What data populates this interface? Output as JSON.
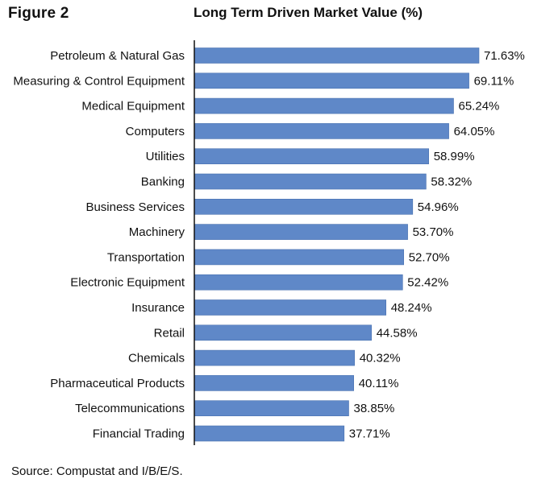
{
  "header": {
    "figure_label": "Figure 2",
    "title": "Long Term Driven Market Value (%)"
  },
  "footer": {
    "source": "Source: Compustat and I/B/E/S."
  },
  "colors": {
    "bar": "#5f88c8",
    "bar_edge": "#4a72b0",
    "axis": "#111111"
  },
  "chart_data": {
    "type": "bar",
    "orientation": "horizontal",
    "title": "Long Term Driven Market Value (%)",
    "xlabel": "",
    "ylabel": "",
    "value_suffix": "%",
    "grid": false,
    "categories": [
      "Petroleum & Natural Gas",
      "Measuring & Control Equipment",
      "Medical Equipment",
      "Computers",
      "Utilities",
      "Banking",
      "Business Services",
      "Machinery",
      "Transportation",
      "Electronic Equipment",
      "Insurance",
      "Retail",
      "Chemicals",
      "Pharmaceutical Products",
      "Telecommunications",
      "Financial Trading"
    ],
    "values": [
      71.63,
      69.11,
      65.24,
      64.05,
      58.99,
      58.32,
      54.96,
      53.7,
      52.7,
      52.42,
      48.24,
      44.58,
      40.32,
      40.11,
      38.85,
      37.71
    ],
    "value_labels": [
      "71.63%",
      "69.11%",
      "65.24%",
      "64.05%",
      "58.99%",
      "58.32%",
      "54.96%",
      "53.70%",
      "52.70%",
      "52.42%",
      "48.24%",
      "44.58%",
      "40.32%",
      "40.11%",
      "38.85%",
      "37.71%"
    ]
  }
}
